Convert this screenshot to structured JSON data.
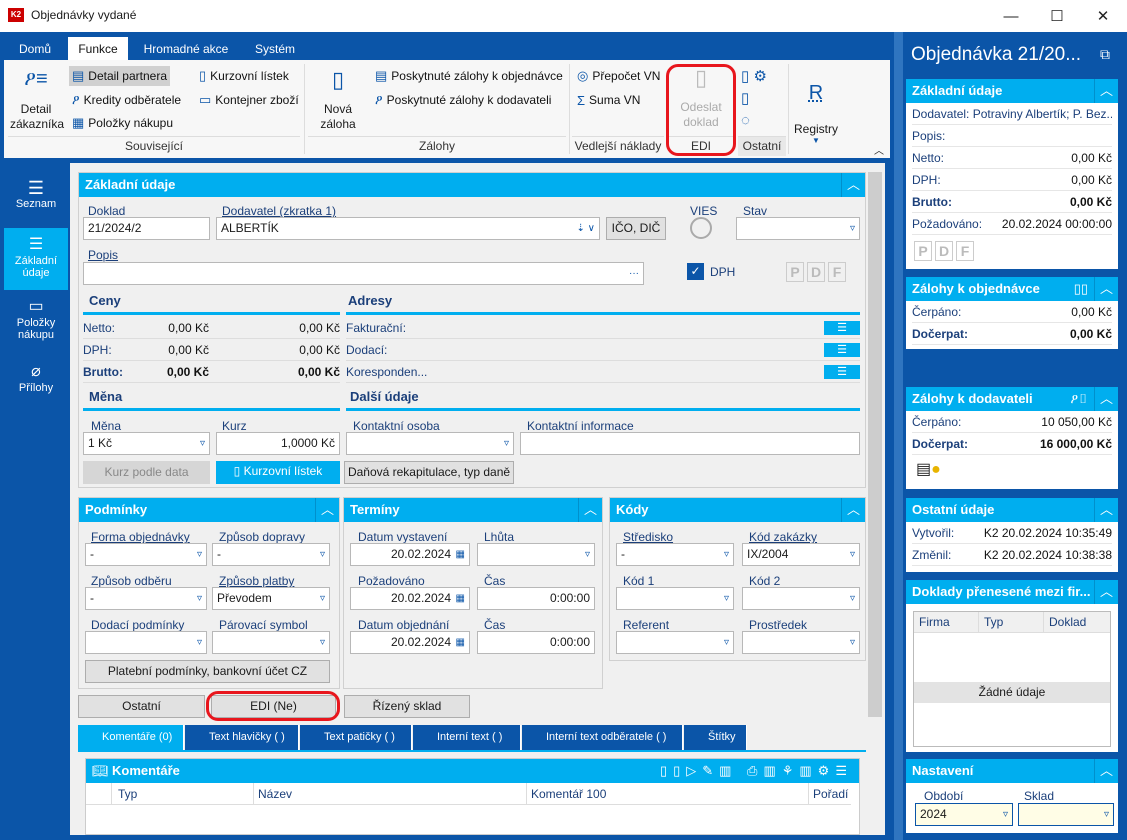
{
  "window": {
    "title": "Objednávky vydané",
    "minimize": "—",
    "maximize": "☐",
    "close": "✕"
  },
  "ribbon": {
    "tabs": [
      "Domů",
      "Funkce",
      "Hromadné akce",
      "Systém"
    ],
    "active_tab": "Funkce",
    "groups": {
      "souvisejici": "Související",
      "zalohy": "Zálohy",
      "vn": "Vedlejší náklady",
      "edi": "EDI",
      "ostatni": "Ostatní"
    },
    "detail_zakaznika": "Detail zákazníka",
    "detail_partnera": "Detail partnera",
    "kredity": "Kredity odběratele",
    "polozky": "Položky nákupu",
    "kurzovni": "Kurzovní lístek",
    "kontejner": "Kontejner zboží",
    "nova_zaloha": "Nová záloha",
    "zal_obj": "Poskytnuté zálohy k objednávce",
    "zal_dod": "Poskytnuté zálohy k dodavateli",
    "prepocet": "Přepočet VN",
    "suma": "Suma VN",
    "odeslat": "Odeslat doklad",
    "registry": "Registry"
  },
  "nav": {
    "items": [
      "Seznam",
      "Základní údaje",
      "Položky nákupu",
      "Přílohy"
    ],
    "active": "Základní údaje"
  },
  "basic": {
    "title": "Základní údaje",
    "doklad_label": "Doklad",
    "doklad": "21/2024/2",
    "dodavatel_label": "Dodavatel (zkratka 1)",
    "dodavatel": "ALBERTÍK",
    "ico_btn": "IČO, DIČ",
    "vies": "VIES",
    "stav_label": "Stav",
    "stav": "",
    "popis_label": "Popis",
    "popis": "",
    "dph": "DPH",
    "dph_checked": true,
    "pdf": [
      "P",
      "D",
      "F"
    ]
  },
  "ceny": {
    "title": "Ceny",
    "rows": [
      {
        "label": "Netto:",
        "v1": "0,00 Kč",
        "v2": "0,00 Kč"
      },
      {
        "label": "DPH:",
        "v1": "0,00 Kč",
        "v2": "0,00 Kč"
      },
      {
        "label": "Brutto:",
        "v1": "0,00 Kč",
        "v2": "0,00 Kč"
      }
    ]
  },
  "adresy": {
    "title": "Adresy",
    "rows": [
      "Fakturační:",
      "Dodací:",
      "Koresponden..."
    ]
  },
  "mena": {
    "title": "Měna",
    "mena_label": "Měna",
    "mena": "1 Kč",
    "kurz_label": "Kurz",
    "kurz": "1,0000 Kč",
    "kurz_btn": "Kurz podle data",
    "listek_btn": "Kurzovní lístek"
  },
  "dalsi": {
    "title": "Další údaje",
    "osoba_label": "Kontaktní osoba",
    "osoba": "",
    "info_label": "Kontaktní informace",
    "info": "",
    "dan_btn": "Daňová rekapitulace, typ daně"
  },
  "podminky": {
    "title": "Podmínky",
    "forma_label": "Forma objednávky",
    "forma": "-",
    "doprava_label": "Způsob dopravy",
    "doprava": "-",
    "odber_label": "Způsob odběru",
    "odber": "-",
    "platba_label": "Způsob platby",
    "platba": "Převodem",
    "dodaci_label": "Dodací podmínky",
    "dodaci": "",
    "parovaci_label": "Párovací symbol",
    "parovaci": "",
    "btn": "Platební podmínky, bankovní účet CZ"
  },
  "terminy": {
    "title": "Termíny",
    "vystaveni_label": "Datum vystavení",
    "vystaveni": "20.02.2024",
    "lhuta_label": "Lhůta",
    "lhuta": "",
    "pozadovano_label": "Požadováno",
    "pozadovano": "20.02.2024",
    "cas1_label": "Čas",
    "cas1": "0:00:00",
    "objednani_label": "Datum objednání",
    "objednani": "20.02.2024",
    "cas2_label": "Čas",
    "cas2": "0:00:00"
  },
  "kody": {
    "title": "Kódy",
    "stredisko_label": "Středisko",
    "stredisko": "-",
    "zakazka_label": "Kód zakázky",
    "zakazka": "IX/2004",
    "kod1_label": "Kód 1",
    "kod1": "",
    "kod2_label": "Kód 2",
    "kod2": "",
    "referent_label": "Referent",
    "referent": "",
    "prostredek_label": "Prostředek",
    "prostredek": ""
  },
  "bottom_buttons": {
    "ostatni": "Ostatní",
    "edi": "EDI (Ne)",
    "sklad": "Řízený sklad"
  },
  "bottom_tabs": [
    "Komentáře (0)",
    "Text hlavičky ( )",
    "Text patičky ( )",
    "Interní text ( )",
    "Interní text odběratele ( )",
    "Štítky"
  ],
  "komentare": {
    "title": "Komentáře",
    "columns": [
      "Typ",
      "Název",
      "Komentář 100",
      "Pořadí"
    ]
  },
  "right": {
    "title": "Objednávka 21/20...",
    "zakladni": {
      "title": "Základní údaje",
      "dodavatel": "Dodavatel: Potraviny Albertík; P. Bez...",
      "popis": "Popis:",
      "rows": [
        {
          "l": "Netto:",
          "v": "0,00 Kč"
        },
        {
          "l": "DPH:",
          "v": "0,00 Kč"
        },
        {
          "l": "Brutto:",
          "v": "0,00 Kč"
        },
        {
          "l": "Požadováno:",
          "v": "20.02.2024 00:00:00"
        }
      ],
      "pdf": [
        "P",
        "D",
        "F"
      ]
    },
    "zal_obj": {
      "title": "Zálohy k objednávce",
      "rows": [
        {
          "l": "Čerpáno:",
          "v": "0,00 Kč"
        },
        {
          "l": "Dočerpat:",
          "v": "0,00 Kč"
        }
      ]
    },
    "zal_dod": {
      "title": "Zálohy k dodavateli",
      "rows": [
        {
          "l": "Čerpáno:",
          "v": "10 050,00 Kč"
        },
        {
          "l": "Dočerpat:",
          "v": "16 000,00 Kč"
        }
      ]
    },
    "ostatni": {
      "title": "Ostatní údaje",
      "rows": [
        {
          "l": "Vytvořil:",
          "v": "K2 20.02.2024 10:35:49"
        },
        {
          "l": "Změnil:",
          "v": "K2 20.02.2024 10:38:38"
        }
      ]
    },
    "doklady": {
      "title": "Doklady přenesené mezi fir...",
      "columns": [
        "Firma",
        "Typ",
        "Doklad"
      ],
      "empty": "Žádné údaje"
    },
    "nastaveni": {
      "title": "Nastavení",
      "obdobi_label": "Období",
      "obdobi": "2024",
      "sklad_label": "Sklad",
      "sklad": ""
    }
  },
  "colors": {
    "frame": "#0b55a8",
    "accent": "#00aeef",
    "highlight": "#e8161d"
  }
}
